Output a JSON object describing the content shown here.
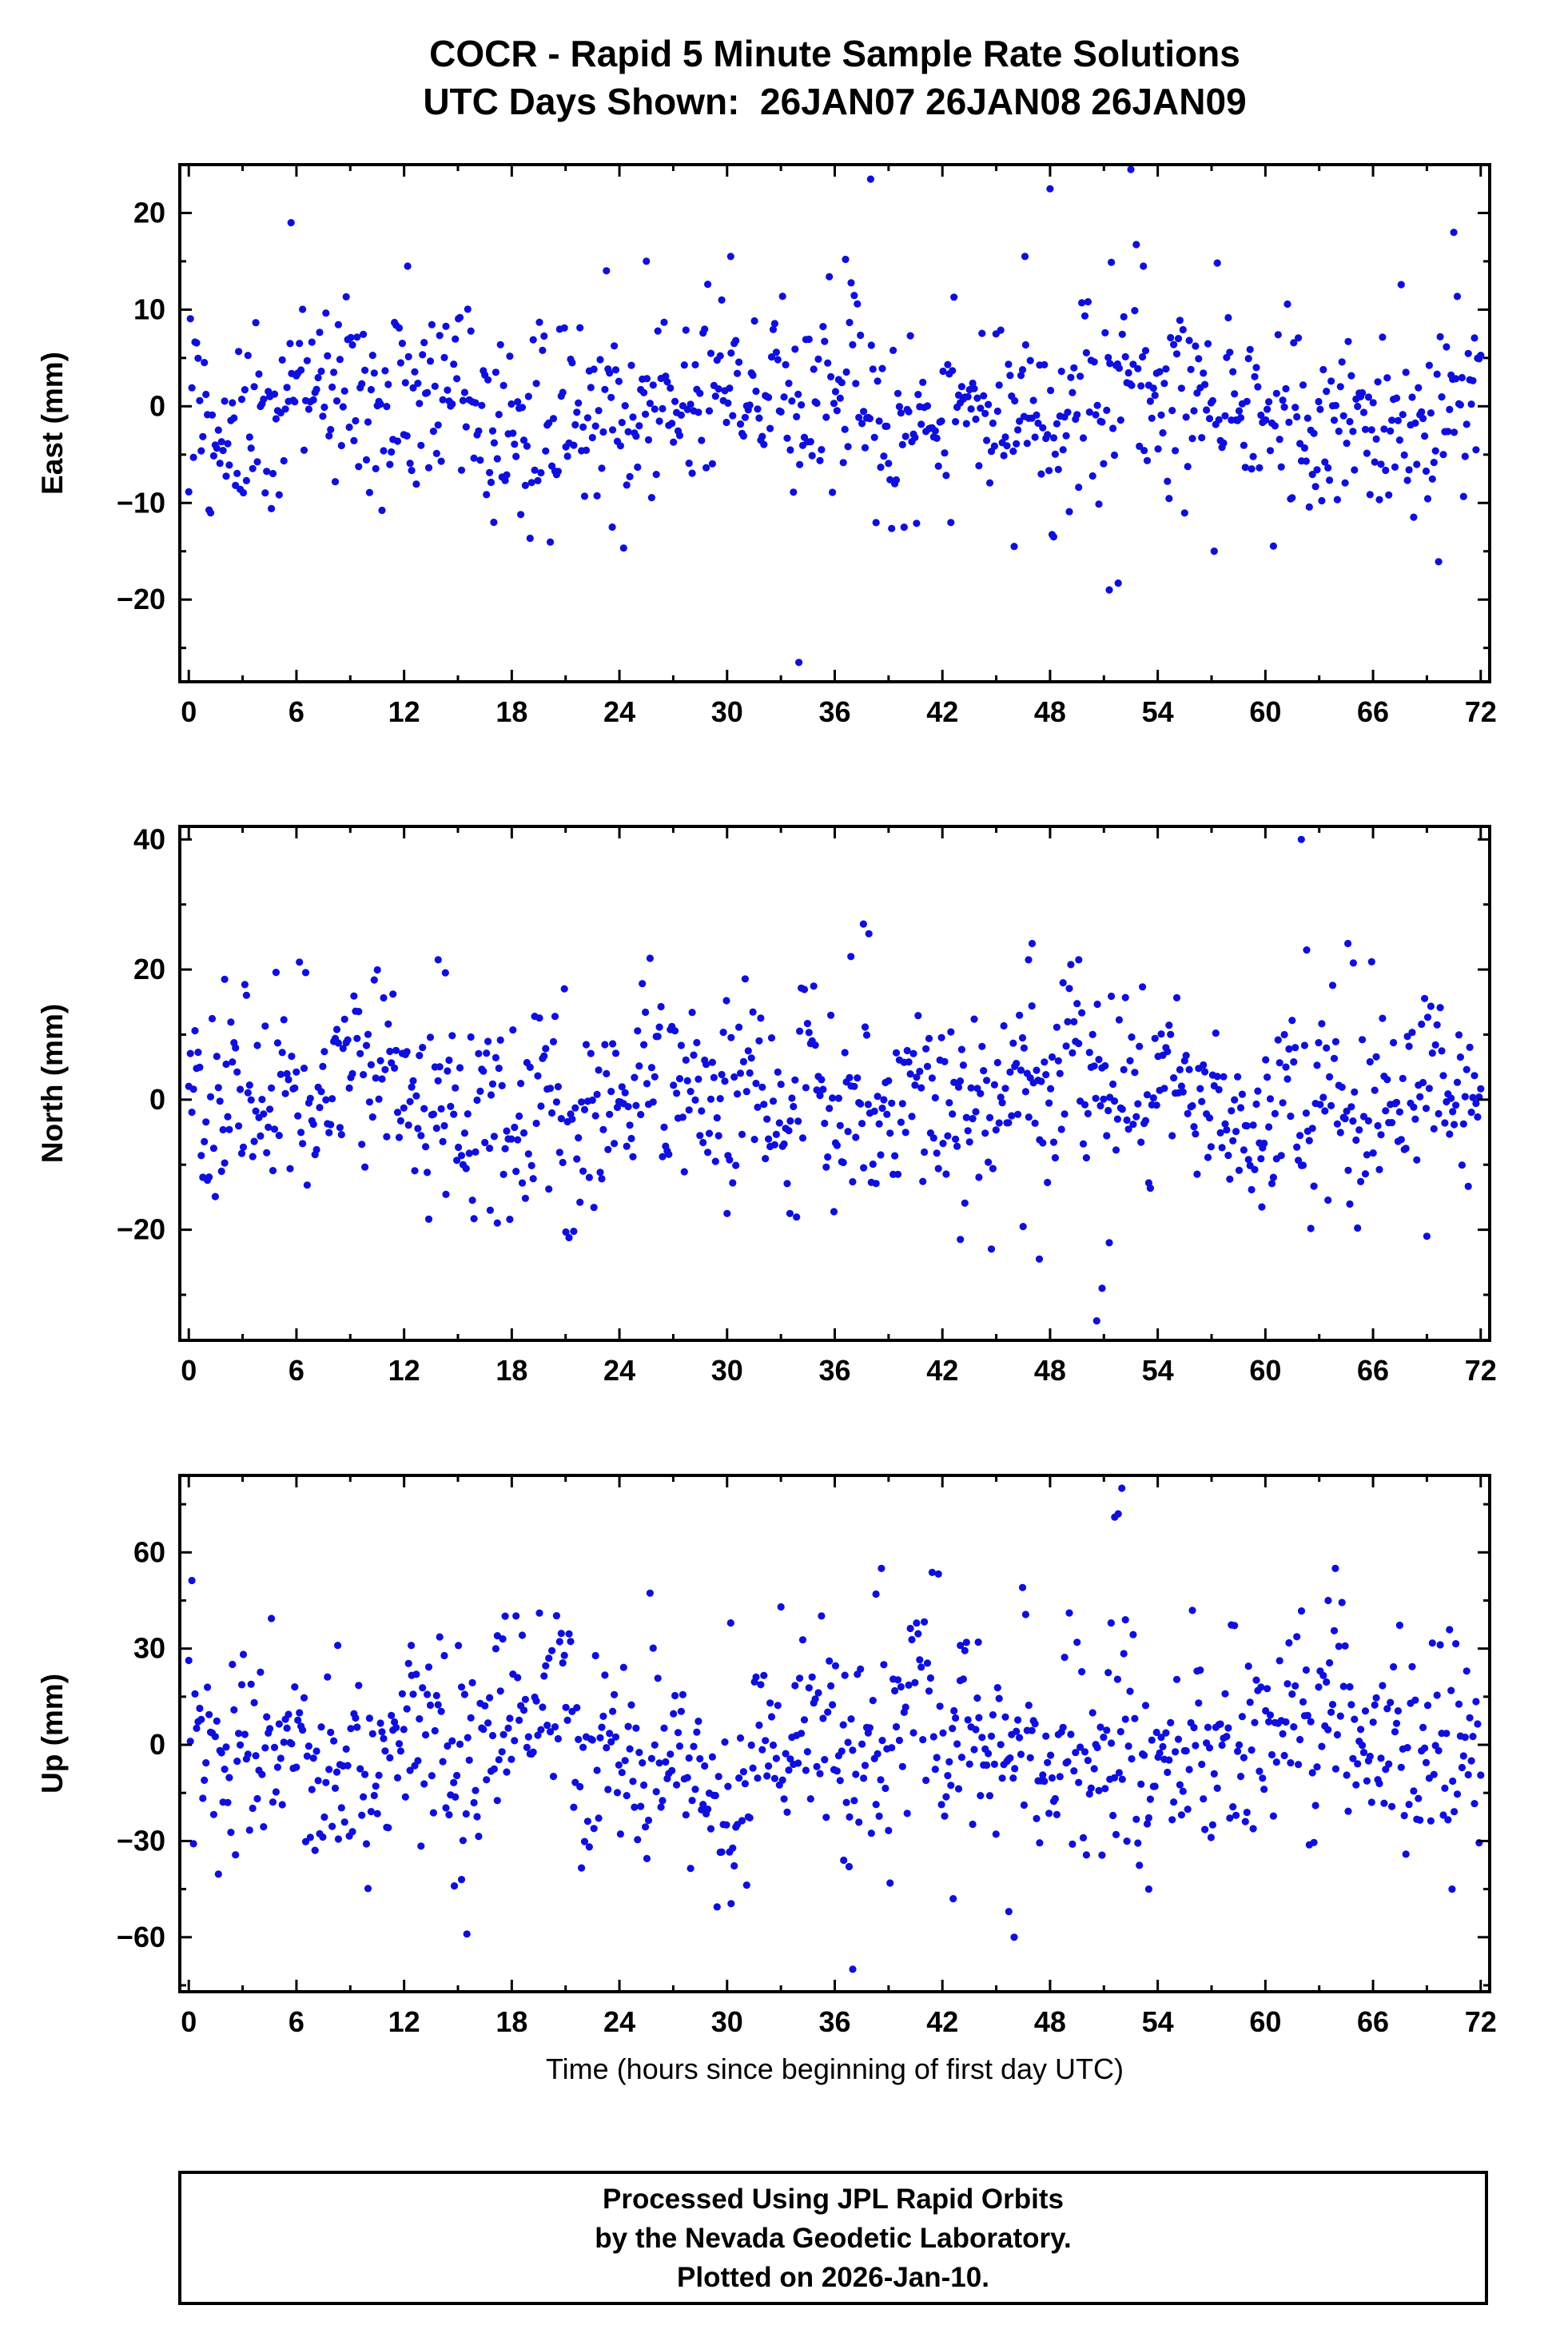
{
  "title": {
    "line1": "COCR - Rapid 5 Minute Sample Rate Solutions",
    "line2": "UTC Days Shown:  26JAN07 26JAN08 26JAN09"
  },
  "footer": {
    "line1": "Processed Using JPL Rapid Orbits",
    "line2": "by the Nevada Geodetic Laboratory.",
    "line3": "Plotted on 2026-Jan-10."
  },
  "chart_data": {
    "type": "scatter",
    "title": "COCR - Rapid 5 Minute Sample Rate Solutions",
    "subtitle": "UTC Days Shown: 26JAN07 26JAN08 26JAN09",
    "xlabel": "Time (hours since beginning of first day UTC)",
    "x_axis": {
      "lim": [
        -0.5,
        72.5
      ],
      "major_ticks": [
        0,
        6,
        12,
        18,
        24,
        30,
        36,
        42,
        48,
        54,
        60,
        66,
        72
      ],
      "minor_step": 3
    },
    "marker": {
      "shape": "circle",
      "color": "#0f0fdd",
      "radius": 4.6
    },
    "grid": false,
    "legend": false,
    "seed": 20260110,
    "sample_interval_minutes": 5,
    "n_per_panel": 830,
    "panels": [
      {
        "id": "east",
        "ylabel": "East (mm)",
        "ylim": [
          -28.5,
          25
        ],
        "yticks": [
          -20,
          -10,
          0,
          10,
          20
        ],
        "minor_step": 5,
        "noise_std": 4.8,
        "wander_amp": 2.5,
        "outliers": [
          [
            5.7,
            19
          ],
          [
            38,
            23.5
          ],
          [
            48,
            22.5
          ],
          [
            52.5,
            24.5
          ],
          [
            34,
            -26.5
          ],
          [
            51.3,
            -19
          ],
          [
            51.8,
            -18.3
          ],
          [
            70.5,
            18
          ],
          [
            36.6,
            15.2
          ],
          [
            30.2,
            15.5
          ],
          [
            25.5,
            15
          ],
          [
            12.2,
            14.5
          ],
          [
            46.6,
            15.5
          ],
          [
            53.2,
            14.5
          ],
          [
            23.6,
            -12.5
          ],
          [
            17,
            -12
          ],
          [
            46,
            -14.5
          ],
          [
            48.2,
            -13.5
          ]
        ]
      },
      {
        "id": "north",
        "ylabel": "North (mm)",
        "ylim": [
          -37,
          42
        ],
        "yticks": [
          -20,
          0,
          20,
          40
        ],
        "minor_step": 10,
        "noise_std": 7,
        "wander_amp": 4,
        "outliers": [
          [
            62,
            40
          ],
          [
            37.6,
            27
          ],
          [
            37.9,
            25.5
          ],
          [
            36.9,
            22
          ],
          [
            47,
            24
          ],
          [
            46.8,
            21.5
          ],
          [
            13.9,
            21.5
          ],
          [
            14.3,
            19.5
          ],
          [
            49.6,
            21.5
          ],
          [
            62.3,
            23
          ],
          [
            64.6,
            24
          ],
          [
            64.9,
            21
          ],
          [
            2,
            18.5
          ],
          [
            50.6,
            -34
          ],
          [
            50.9,
            -29
          ],
          [
            47.4,
            -24.5
          ],
          [
            43,
            -21.5
          ],
          [
            51.3,
            -22
          ],
          [
            69,
            -21
          ],
          [
            46.5,
            -19.5
          ],
          [
            30,
            -17.5
          ],
          [
            33.5,
            -17.5
          ],
          [
            16.8,
            -17
          ],
          [
            59.8,
            -16.5
          ]
        ]
      },
      {
        "id": "up",
        "ylabel": "Up (mm)",
        "ylim": [
          -77,
          84
        ],
        "yticks": [
          -60,
          -30,
          0,
          30,
          60
        ],
        "minor_step": 15,
        "noise_std": 16,
        "wander_amp": 10,
        "outliers": [
          [
            52,
            80
          ],
          [
            51.8,
            72
          ],
          [
            51.6,
            71
          ],
          [
            38.6,
            55
          ],
          [
            63.9,
            55
          ],
          [
            63.5,
            45
          ],
          [
            38.3,
            47
          ],
          [
            52.2,
            39
          ],
          [
            51.4,
            38
          ],
          [
            17.2,
            34
          ],
          [
            17.5,
            33
          ],
          [
            8.3,
            31
          ],
          [
            12.4,
            31
          ],
          [
            30.2,
            38
          ],
          [
            43,
            31
          ],
          [
            44,
            32
          ],
          [
            37,
            -70
          ],
          [
            15.5,
            -59
          ],
          [
            46,
            -60
          ],
          [
            45.7,
            -52
          ],
          [
            42.6,
            -48
          ],
          [
            70.4,
            -45
          ],
          [
            14.8,
            -44
          ],
          [
            15.2,
            -42
          ],
          [
            36.8,
            -38
          ],
          [
            36.5,
            -36
          ],
          [
            53.5,
            -45
          ]
        ]
      }
    ]
  }
}
